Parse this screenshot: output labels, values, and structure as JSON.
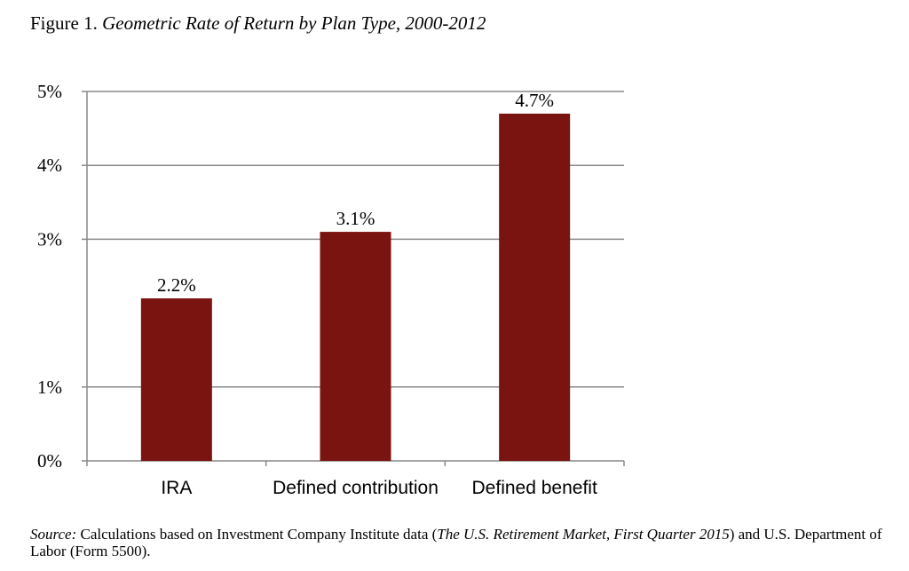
{
  "figure": {
    "label": "Figure 1.",
    "title": "Geometric Rate of Return by Plan Type, 2000-2012"
  },
  "source": {
    "lead": "Source:",
    "text_1": "Calculations based on Investment Company Institute data (",
    "italic_ref": "The U.S. Retirement Market, First Quarter 2015",
    "text_2": ") and U.S. Department of Labor (Form 5500)."
  },
  "colors": {
    "bar": "#7a1410",
    "grid": "#888888",
    "axis": "#888888"
  },
  "chart_data": {
    "type": "bar",
    "title": "Geometric Rate of Return by Plan Type, 2000-2012",
    "categories": [
      "IRA",
      "Defined contribution",
      "Defined benefit"
    ],
    "values": [
      2.2,
      3.1,
      4.7
    ],
    "data_labels": [
      "2.2%",
      "3.1%",
      "4.7%"
    ],
    "xlabel": "",
    "ylabel": "",
    "y_ticks": [
      {
        "value": 0,
        "label": "0%"
      },
      {
        "value": 1,
        "label": "1%"
      },
      {
        "value": 3,
        "label": "3%"
      },
      {
        "value": 4,
        "label": "4%"
      },
      {
        "value": 5,
        "label": "5%"
      }
    ],
    "ylim": [
      0,
      5
    ],
    "grid": true,
    "legend": "none"
  }
}
